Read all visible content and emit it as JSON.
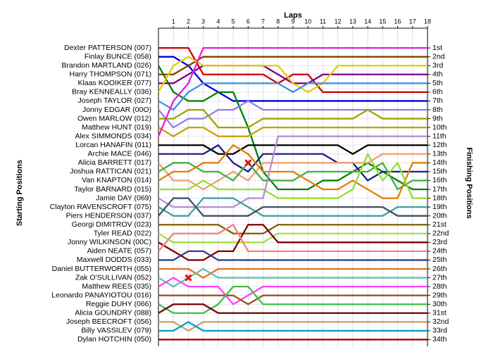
{
  "chart_data": {
    "type": "line",
    "title": "Laps",
    "y_label": "Starting Positions",
    "y2_label": "Finishing Positions",
    "x": [
      0,
      1,
      2,
      3,
      4,
      5,
      6,
      7,
      8,
      9,
      10,
      11,
      12,
      13,
      14,
      15,
      16,
      17,
      18
    ],
    "xlim": [
      0,
      18
    ],
    "xticks": [
      1,
      2,
      3,
      4,
      5,
      6,
      7,
      8,
      9,
      10,
      11,
      12,
      13,
      14,
      15,
      16,
      17,
      18
    ],
    "ylim": [
      -1,
      35
    ],
    "y_inverted": true,
    "grid": true,
    "y2ticks": [
      {
        "value": 1,
        "label": "1st"
      },
      {
        "value": 2,
        "label": "2nd"
      },
      {
        "value": 3,
        "label": "3rd"
      },
      {
        "value": 4,
        "label": "4th"
      },
      {
        "value": 5,
        "label": "5th"
      },
      {
        "value": 6,
        "label": "6th"
      },
      {
        "value": 7,
        "label": "7th"
      },
      {
        "value": 8,
        "label": "8th"
      },
      {
        "value": 9,
        "label": "9th"
      },
      {
        "value": 10,
        "label": "10th"
      },
      {
        "value": 11,
        "label": "11th"
      },
      {
        "value": 12,
        "label": "12th"
      },
      {
        "value": 13,
        "label": "13th"
      },
      {
        "value": 14,
        "label": "14th"
      },
      {
        "value": 15,
        "label": "15th"
      },
      {
        "value": 16,
        "label": "16th"
      },
      {
        "value": 17,
        "label": "17th"
      },
      {
        "value": 18,
        "label": "18th"
      },
      {
        "value": 19,
        "label": "19th"
      },
      {
        "value": 20,
        "label": "20th"
      },
      {
        "value": 21,
        "label": "21st"
      },
      {
        "value": 22,
        "label": "22nd"
      },
      {
        "value": 23,
        "label": "23rd"
      },
      {
        "value": 24,
        "label": "24th"
      },
      {
        "value": 25,
        "label": "25th"
      },
      {
        "value": 26,
        "label": "26th"
      },
      {
        "value": 27,
        "label": "27th"
      },
      {
        "value": 28,
        "label": "28th"
      },
      {
        "value": 29,
        "label": "29th"
      },
      {
        "value": 30,
        "label": "30th"
      },
      {
        "value": 31,
        "label": "31st"
      },
      {
        "value": 32,
        "label": "32nd"
      },
      {
        "value": 33,
        "label": "33rd"
      },
      {
        "value": 34,
        "label": "34th"
      }
    ],
    "series": [
      {
        "name": "Dexter PATTERSON (007)",
        "color": "#cc0000",
        "values": [
          1,
          1,
          1,
          4,
          4,
          4,
          4,
          4,
          5,
          4,
          4,
          6,
          6,
          6,
          6,
          6,
          6,
          6,
          6
        ]
      },
      {
        "name": "Finlay BUNCE (058)",
        "color": "#0000dd",
        "values": [
          2,
          2,
          3,
          5,
          6,
          7,
          7,
          7,
          7,
          7,
          7,
          7,
          7,
          7,
          7,
          7,
          7,
          7,
          7
        ]
      },
      {
        "name": "Brandon MARTLAND (026)",
        "color": "#008000",
        "values": [
          3,
          6,
          7,
          7,
          6,
          6,
          10,
          15,
          17,
          17,
          17,
          16,
          16,
          15,
          14,
          15,
          16,
          17,
          17
        ]
      },
      {
        "name": "Harry THOMPSON (071)",
        "color": "#804000",
        "values": [
          4,
          4,
          3,
          2,
          2,
          2,
          2,
          2,
          2,
          2,
          2,
          2,
          2,
          2,
          2,
          2,
          2,
          2,
          2
        ]
      },
      {
        "name": "Klaas KOOIKER (077)",
        "color": "#800080",
        "values": [
          5,
          5,
          4,
          3,
          3,
          3,
          3,
          3,
          4,
          5,
          5,
          4,
          4,
          4,
          4,
          4,
          4,
          4,
          4
        ]
      },
      {
        "name": "Bray KENNEALLY (036)",
        "color": "#e0d000",
        "values": [
          6,
          3,
          2,
          3,
          3,
          3,
          3,
          3,
          3,
          5,
          6,
          5,
          3,
          3,
          3,
          3,
          3,
          3,
          3
        ]
      },
      {
        "name": "Joseph TAYLOR (027)",
        "color": "#4090e0",
        "values": [
          7,
          8,
          6,
          5,
          5,
          5,
          5,
          5,
          5,
          6,
          5,
          5,
          5,
          5,
          5,
          5,
          5,
          5,
          5
        ]
      },
      {
        "name": "Jonny EDGAR (00O)",
        "color": "#9080e0",
        "values": [
          8,
          10,
          9,
          9,
          8,
          8,
          7,
          8,
          8,
          8,
          8,
          8,
          8,
          8,
          8,
          8,
          8,
          8,
          8
        ]
      },
      {
        "name": "Owen MARLOW (012)",
        "color": "#a0a000",
        "values": [
          9,
          9,
          8,
          8,
          10,
          10,
          10,
          9,
          9,
          9,
          9,
          9,
          9,
          9,
          8,
          9,
          9,
          9,
          9
        ]
      },
      {
        "name": "Matthew HUNT (019)",
        "color": "#c8a000",
        "values": [
          10,
          11,
          10,
          10,
          11,
          11,
          11,
          10,
          10,
          10,
          10,
          10,
          10,
          10,
          10,
          10,
          10,
          10,
          10
        ]
      },
      {
        "name": "Alex SIMMONDS (034)",
        "color": "#e020e0",
        "values": [
          11,
          7,
          5,
          1,
          1,
          1,
          1,
          1,
          1,
          1,
          1,
          1,
          1,
          1,
          1,
          1,
          1,
          1,
          1
        ]
      },
      {
        "name": "Lorcan HANAFIN (011)",
        "color": "#000000",
        "values": [
          12,
          12,
          12,
          12,
          13,
          13,
          12,
          12,
          12,
          12,
          12,
          12,
          12,
          13,
          12,
          12,
          12,
          12,
          12
        ]
      },
      {
        "name": "Archie MACE (046)",
        "color": "#202080",
        "values": [
          13,
          13,
          13,
          13,
          12,
          14,
          15,
          13,
          13,
          13,
          13,
          13,
          14,
          14,
          16,
          15,
          15,
          15,
          15
        ]
      },
      {
        "name": "Alicia BARRETT (017)",
        "color": "#f0a070",
        "values": [
          14,
          16,
          16,
          17,
          16,
          15,
          16,
          14,
          14,
          14,
          14,
          14,
          14,
          14,
          14,
          13,
          13,
          13,
          13
        ]
      },
      {
        "name": "Joshua RATTICAN (021)",
        "color": "#40b040",
        "values": [
          15,
          14,
          14,
          15,
          15,
          16,
          14,
          16,
          16,
          16,
          15,
          15,
          15,
          15,
          15,
          14,
          17,
          16,
          16
        ]
      },
      {
        "name": "Van KNAPTON (014)",
        "color": "#e08000",
        "values": [
          16,
          15,
          15,
          14,
          14,
          12,
          13,
          15,
          15,
          15,
          16,
          17,
          17,
          16,
          17,
          18,
          18,
          14,
          14
        ]
      },
      {
        "name": "Taylor BARNARD (015)",
        "color": "#90e030",
        "values": [
          17,
          17,
          17,
          16,
          17,
          17,
          17,
          17,
          18,
          18,
          18,
          18,
          18,
          17,
          13,
          16,
          14,
          18,
          18
        ]
      },
      {
        "name": "Jamie DAY (069)",
        "color": "#b090d0",
        "values": [
          18,
          19,
          19,
          19,
          19,
          19,
          18,
          18,
          11,
          11,
          11,
          11,
          11,
          11,
          11,
          11,
          11,
          11,
          11
        ]
      },
      {
        "name": "Clayton RAVENSCROFT (075)",
        "color": "#40a0a0",
        "values": [
          19,
          20,
          20,
          18,
          18,
          18,
          19,
          20,
          20,
          20,
          20,
          20,
          20,
          20,
          20,
          20,
          19,
          19,
          19
        ]
      },
      {
        "name": "Piers HENDERSON (037)",
        "color": "#405060",
        "values": [
          20,
          18,
          18,
          20,
          20,
          20,
          20,
          19,
          19,
          19,
          19,
          19,
          19,
          19,
          19,
          19,
          20,
          20,
          20
        ]
      },
      {
        "name": "Georgi DIMITROV (023)",
        "color": "#806000",
        "values": [
          21,
          21,
          21,
          21,
          21,
          22,
          22,
          22,
          21,
          21,
          21,
          21,
          21,
          21,
          21,
          21,
          21,
          21,
          21
        ]
      },
      {
        "name": "Tyler READ (022)",
        "color": "#a0e040",
        "values": [
          22,
          23,
          23,
          23,
          23,
          23,
          23,
          23,
          22,
          22,
          22,
          22,
          22,
          22,
          22,
          22,
          22,
          22,
          22
        ]
      },
      {
        "name": "Jonny WILKINSON (00C)",
        "color": "#800000",
        "values": [
          23,
          24,
          25,
          25,
          24,
          24,
          21,
          21,
          23,
          23,
          23,
          23,
          23,
          23,
          23,
          23,
          23,
          23,
          23
        ]
      },
      {
        "name": "Aiden NEATE (057)",
        "color": "#f08080",
        "values": [
          24,
          22,
          22,
          22,
          22,
          21,
          24,
          24,
          24,
          24,
          24,
          24,
          24,
          24,
          24,
          24,
          24,
          24,
          24
        ]
      },
      {
        "name": "Maxwell DODDS (033)",
        "color": "#304080",
        "values": [
          25,
          25,
          24,
          24,
          25,
          25,
          25,
          25,
          25,
          25,
          25,
          25,
          25,
          25,
          25,
          25,
          25,
          25,
          25
        ]
      },
      {
        "name": "Daniel BUTTERWORTH (055)",
        "color": "#e07020",
        "values": [
          26,
          26,
          26,
          27,
          26,
          26,
          26,
          26,
          26,
          26,
          26,
          26,
          26,
          26,
          26,
          26,
          26,
          26,
          26
        ]
      },
      {
        "name": "Zak O'SULLIVAN (052)",
        "color": "#60c0b0",
        "values": [
          27,
          28,
          27,
          26,
          27,
          27,
          27,
          27,
          27,
          27,
          27,
          27,
          27,
          27,
          27,
          27,
          27,
          27,
          27
        ]
      },
      {
        "name": "Matthew REES (035)",
        "color": "#ff40ff",
        "values": [
          28,
          27,
          28,
          28,
          28,
          30,
          29,
          28,
          28,
          28,
          28,
          28,
          28,
          28,
          28,
          28,
          28,
          28,
          28
        ]
      },
      {
        "name": "Leonardo PANAYIOTOU (016)",
        "color": "#a05020",
        "values": [
          29,
          29,
          29,
          29,
          29,
          29,
          30,
          29,
          29,
          29,
          29,
          29,
          29,
          29,
          29,
          29,
          29,
          29,
          29
        ]
      },
      {
        "name": "Reggie DUHY (066)",
        "color": "#40c040",
        "values": [
          30,
          31,
          31,
          31,
          30,
          28,
          28,
          30,
          30,
          30,
          30,
          30,
          30,
          30,
          30,
          30,
          30,
          30,
          30
        ]
      },
      {
        "name": "Alicia GOUNDRY (088)",
        "color": "#700000",
        "values": [
          31,
          30,
          30,
          30,
          31,
          31,
          31,
          31,
          31,
          31,
          31,
          31,
          31,
          31,
          31,
          31,
          31,
          31,
          31
        ]
      },
      {
        "name": "Joseph BEECROFT (056)",
        "color": "#d0a060",
        "values": [
          32,
          32,
          33,
          32,
          32,
          32,
          32,
          32,
          32,
          32,
          32,
          32,
          32,
          32,
          32,
          32,
          32,
          32,
          32
        ]
      },
      {
        "name": "Billy VASSILEV (079)",
        "color": "#00a0c0",
        "values": [
          33,
          33,
          32,
          33,
          33,
          33,
          33,
          33,
          33,
          33,
          33,
          33,
          33,
          33,
          33,
          33,
          33,
          33,
          33
        ]
      },
      {
        "name": "Dylan HOTCHIN (050)",
        "color": "#a00000",
        "values": [
          34,
          34,
          34,
          34,
          34,
          34,
          34,
          34,
          34,
          34,
          34,
          34,
          34,
          34,
          34,
          34,
          34,
          34,
          34
        ]
      }
    ],
    "incidents": [
      {
        "x": 6,
        "y": 14
      },
      {
        "x": 2,
        "y": 27
      }
    ]
  }
}
